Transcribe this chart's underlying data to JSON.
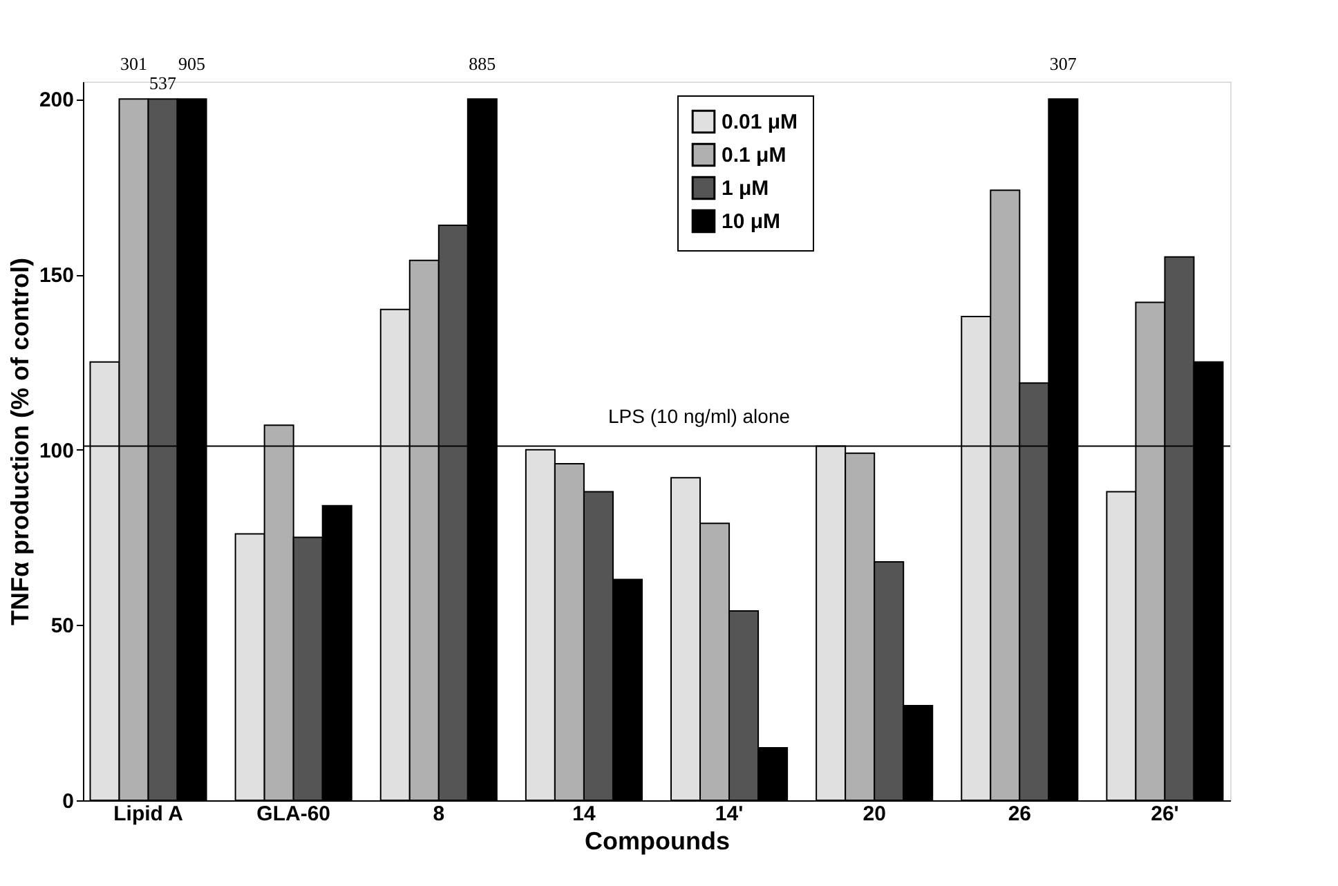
{
  "chart_data": {
    "type": "bar",
    "xlabel": "Compounds",
    "ylabel": "TNFα production (% of control)",
    "categories": [
      "Lipid A",
      "GLA-60",
      "8",
      "14",
      "14'",
      "20",
      "26",
      "26'"
    ],
    "series": [
      {
        "name": "0.01 μM",
        "color": "#e0e0e0",
        "values": [
          125,
          76,
          140,
          100,
          92,
          101,
          138,
          88
        ]
      },
      {
        "name": "0.1 μM",
        "color": "#b0b0b0",
        "values": [
          200,
          107,
          154,
          96,
          79,
          99,
          174,
          142
        ]
      },
      {
        "name": "1 μM",
        "color": "#555555",
        "values": [
          200,
          75,
          164,
          88,
          54,
          68,
          119,
          155
        ]
      },
      {
        "name": "10 μM",
        "color": "#000000",
        "values": [
          200,
          84,
          200,
          63,
          15,
          27,
          200,
          125
        ]
      }
    ],
    "ylim": [
      0,
      205
    ],
    "yticks": [
      0,
      50,
      100,
      150,
      200
    ],
    "grid": false,
    "legend": "top right",
    "ref_lines": [
      {
        "axis": "y",
        "value": 101,
        "label": "LPS (10 ng/ml) alone"
      }
    ],
    "annotations": [
      "301",
      "537",
      "905",
      "885",
      "307"
    ]
  }
}
